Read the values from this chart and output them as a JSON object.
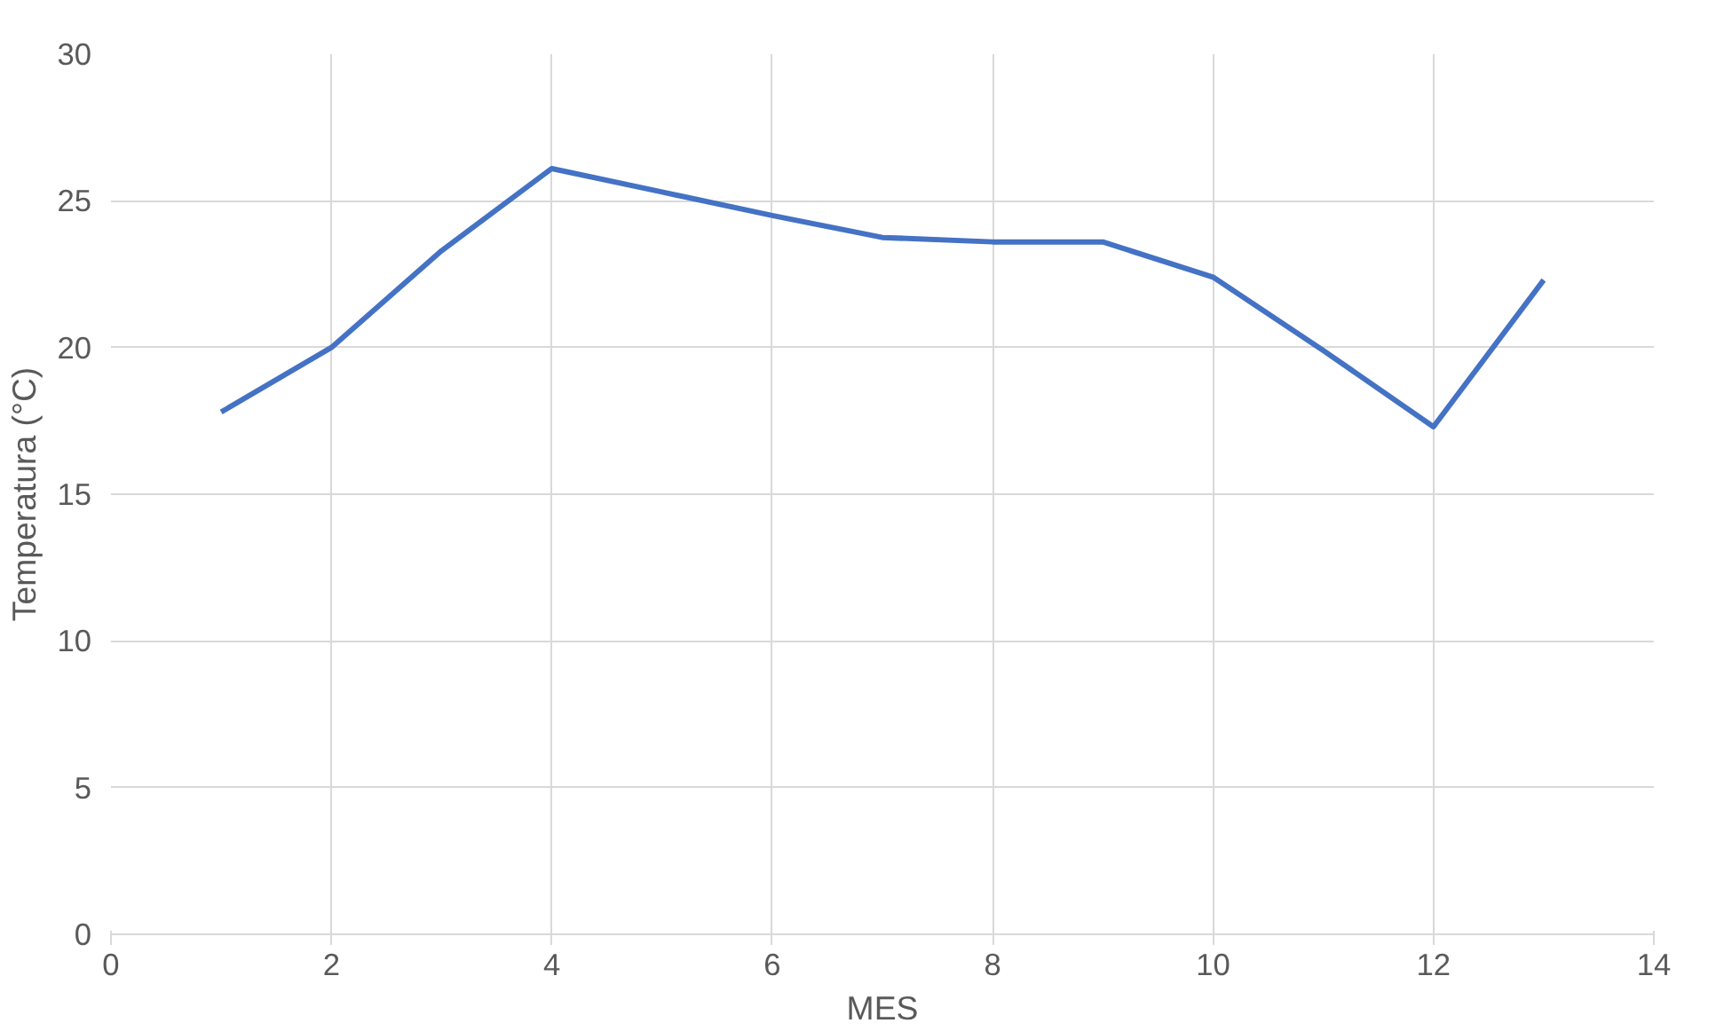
{
  "chart_data": {
    "type": "line",
    "xlabel": "MES",
    "ylabel": "Temperatura (°C)",
    "x": [
      1,
      2,
      3,
      4,
      5,
      6,
      7,
      8,
      9,
      10,
      11,
      12,
      13
    ],
    "series": [
      {
        "color": "#4472c4",
        "values": [
          17.8,
          20.0,
          23.3,
          26.1,
          25.3,
          24.5,
          23.75,
          23.6,
          23.6,
          22.4,
          19.9,
          17.3,
          22.3
        ]
      }
    ],
    "xlim": [
      0,
      14
    ],
    "xticks": [
      0,
      2,
      4,
      6,
      8,
      10,
      12,
      14
    ],
    "ylim": [
      0,
      30
    ],
    "yticks": [
      0,
      5,
      10,
      15,
      20,
      25,
      30
    ],
    "grid": true,
    "marker": "none",
    "line_style": "solid"
  }
}
